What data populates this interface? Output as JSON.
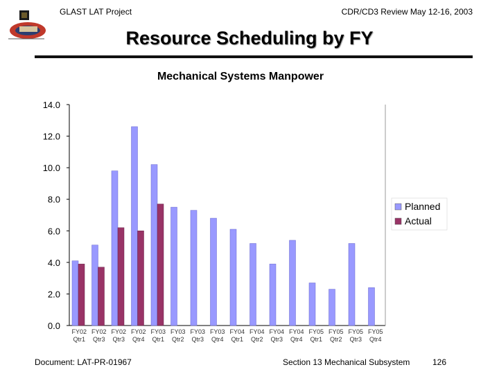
{
  "header": {
    "left": "GLAST LAT Project",
    "right": "CDR/CD3 Review May 12-16, 2003"
  },
  "slide": {
    "title": "Resource Scheduling by FY"
  },
  "footer": {
    "document": "Document:  LAT-PR-01967",
    "section": "Section 13   Mechanical Subsystem",
    "page": "126"
  },
  "colors": {
    "planned": "#9999ff",
    "actual": "#993366",
    "rule": "#111111"
  },
  "logo": {
    "icon": "glast-mission-logo-icon"
  },
  "chart_data": {
    "type": "bar",
    "title": "Mechanical Systems Manpower",
    "categories": [
      [
        "FY02",
        "Qtr1"
      ],
      [
        "FY02",
        "Qtr3"
      ],
      [
        "FY02",
        "Qtr3"
      ],
      [
        "FY02",
        "Qtr4"
      ],
      [
        "FY03",
        "Qtr1"
      ],
      [
        "FY03",
        "Qtr2"
      ],
      [
        "FY03",
        "Qtr3"
      ],
      [
        "FY03",
        "Qtr4"
      ],
      [
        "FY04",
        "Qtr1"
      ],
      [
        "FY04",
        "Qtr2"
      ],
      [
        "FY04",
        "Qtr3"
      ],
      [
        "FY04",
        "Qtr4"
      ],
      [
        "FY05",
        "Qtr1"
      ],
      [
        "FY05",
        "Qtr2"
      ],
      [
        "FY05",
        "Qtr3"
      ],
      [
        "FY05",
        "Qtr4"
      ]
    ],
    "series": [
      {
        "name": "Planned",
        "values": [
          4.1,
          5.1,
          9.8,
          12.6,
          10.2,
          7.5,
          7.3,
          6.8,
          6.1,
          5.2,
          3.9,
          5.4,
          2.7,
          2.3,
          5.2,
          2.4
        ]
      },
      {
        "name": "Actual",
        "values": [
          3.9,
          3.7,
          6.2,
          6.0,
          7.7,
          null,
          null,
          null,
          null,
          null,
          null,
          null,
          null,
          null,
          null,
          null
        ]
      }
    ],
    "ylim": [
      0,
      14
    ],
    "yticks": [
      "0.0",
      "2.0",
      "4.0",
      "6.0",
      "8.0",
      "10.0",
      "12.0",
      "14.0"
    ],
    "grid": false,
    "legend": "right"
  }
}
